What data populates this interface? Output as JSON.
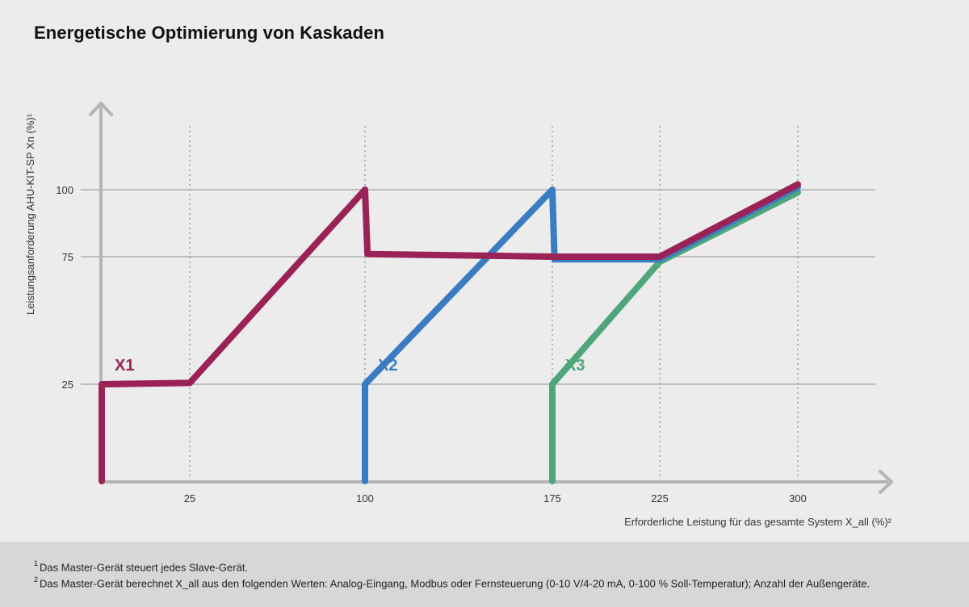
{
  "chart_data": {
    "type": "line",
    "title": "Energetische Optimierung von Kaskaden",
    "xlabel": "Erforderliche Leistung für das gesamte System X_all (%)²",
    "ylabel": "Leistungsanforderung AHU-KIT-SP Xn  (%)¹",
    "x_ticks": [
      {
        "value": 25,
        "label": "25"
      },
      {
        "value": 100,
        "label": "100"
      },
      {
        "value": 175,
        "label": "175"
      },
      {
        "value": 225,
        "label": "225"
      },
      {
        "value": 300,
        "label": "300"
      }
    ],
    "y_ticks": [
      {
        "value": 25,
        "label": "25"
      },
      {
        "value": 75,
        "label": "75"
      },
      {
        "value": 100,
        "label": "100"
      }
    ],
    "grid": true,
    "series": [
      {
        "name": "X1",
        "color": "#9b2257",
        "points": [
          [
            0,
            0
          ],
          [
            0,
            25
          ],
          [
            25,
            25.5
          ],
          [
            100,
            100
          ],
          [
            101,
            76
          ],
          [
            175,
            75
          ],
          [
            225,
            75
          ],
          [
            300,
            102
          ]
        ]
      },
      {
        "name": "X2",
        "color": "#3a7cc2",
        "points": [
          [
            100,
            0
          ],
          [
            100,
            25
          ],
          [
            175,
            100
          ],
          [
            176,
            74
          ],
          [
            225,
            74
          ],
          [
            300,
            101
          ]
        ]
      },
      {
        "name": "X3",
        "color": "#4fa67a",
        "points": [
          [
            175,
            0
          ],
          [
            175,
            25
          ],
          [
            225,
            73
          ],
          [
            300,
            99
          ]
        ]
      }
    ]
  },
  "footnotes": [
    {
      "mark": "1",
      "text": "Das Master-Gerät steuert jedes Slave-Gerät."
    },
    {
      "mark": "2",
      "text": "Das Master-Gerät berechnet X_all aus den folgenden Werten: Analog-Eingang, Modbus oder Fernsteuerung (0-10 V/4-20 mA, 0-100 % Soll-Temperatur); Anzahl der Außengeräte."
    }
  ]
}
